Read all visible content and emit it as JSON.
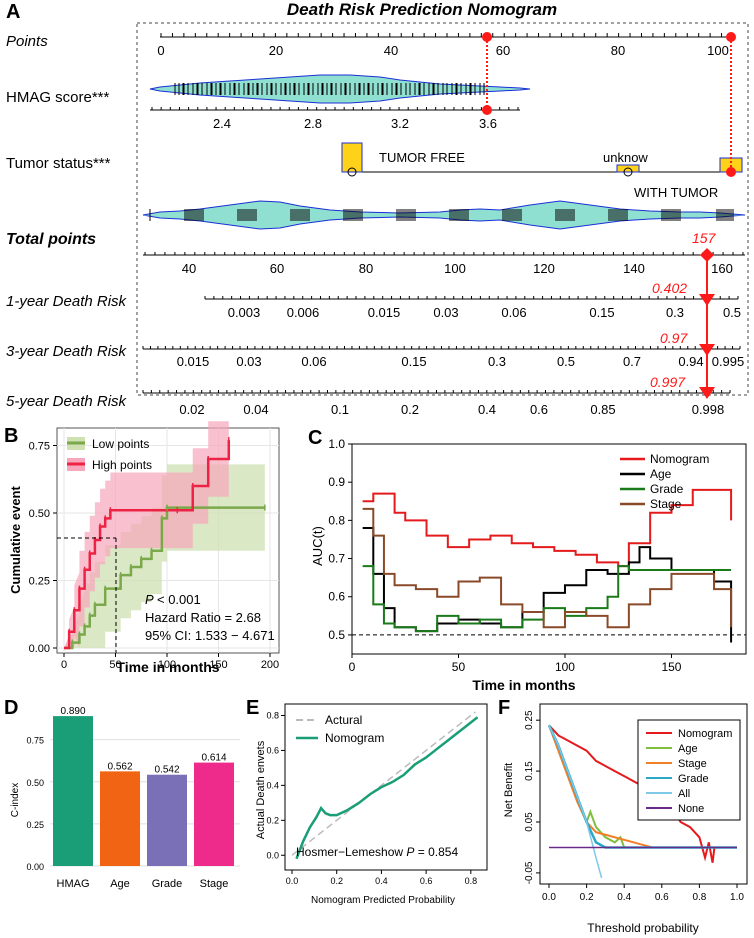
{
  "colors": {
    "accent_red": "#ff1a1a",
    "violin_fill": "#8fe0d0",
    "violin_edge": "#1a2fd6",
    "marker_yellow": "#ffd21a",
    "km_low": "#7aa84a",
    "km_low_band": "#cfe0b3",
    "km_high": "#ee2244",
    "km_high_band": "#f7a6bb",
    "bar_hmag": "#1a9e77",
    "bar_age": "#f06414",
    "bar_grade": "#7a70b8",
    "bar_stage": "#ee2a8a",
    "calib_line": "#1a9e77",
    "dca_nomogram": "#e41a1c",
    "dca_age": "#7fbf3f",
    "dca_stage": "#f07f28",
    "dca_grade": "#2ba8c8",
    "dca_all": "#7ec8e8",
    "dca_none": "#6a2a8a"
  },
  "chart_data": [
    {
      "panel": "A",
      "type": "nomogram",
      "title": "Death Risk Prediction Nomogram",
      "rows": [
        {
          "label": "Points",
          "ticks": [
            "0",
            "20",
            "40",
            "60",
            "80",
            "100"
          ],
          "range": [
            0,
            100
          ]
        },
        {
          "label": "HMAG score***",
          "ticks": [
            "2.4",
            "2.8",
            "3.2",
            "3.6"
          ],
          "range": [
            2.2,
            3.7
          ]
        },
        {
          "label": "Tumor status***",
          "levels": [
            "TUMOR FREE",
            "unknow",
            "WITH TUMOR"
          ]
        },
        {
          "label": "Total points",
          "ticks": [
            "40",
            "60",
            "80",
            "100",
            "120",
            "140",
            "160"
          ],
          "range": [
            30,
            165
          ]
        },
        {
          "label": "1-year Death Risk",
          "ticks": [
            "0.003",
            "0.006",
            "0.015",
            "0.03",
            "0.06",
            "0.15",
            "0.3",
            "0.5"
          ]
        },
        {
          "label": "3-year Death Risk",
          "ticks": [
            "0.015",
            "0.03",
            "0.06",
            "0.15",
            "0.3",
            "0.5",
            "0.7",
            "0.94",
            "0.995"
          ]
        },
        {
          "label": "5-year Death Risk",
          "ticks": [
            "0.02",
            "0.04",
            "0.1",
            "0.2",
            "0.4",
            "0.6",
            "0.85",
            "0.998"
          ]
        }
      ],
      "example": {
        "total_points": "157",
        "risk_1y": "0.402",
        "risk_3y": "0.97",
        "risk_5y": "0.997",
        "hmag_points": 56,
        "tumor_points": 101
      }
    },
    {
      "panel": "B",
      "type": "line",
      "subtype": "kaplan-meier-cumulative-event",
      "xlabel": "Time in months",
      "ylabel": "Cumulative event",
      "xlim": [
        0,
        200
      ],
      "ylim": [
        0,
        0.8
      ],
      "xticks": [
        "0",
        "50",
        "100",
        "150",
        "200"
      ],
      "yticks": [
        "0.00",
        "0.25",
        "0.50",
        "0.75"
      ],
      "series": [
        {
          "name": "Low points",
          "x": [
            0,
            8,
            15,
            20,
            25,
            30,
            40,
            55,
            65,
            75,
            85,
            95,
            100,
            195
          ],
          "y": [
            0,
            0.02,
            0.05,
            0.08,
            0.12,
            0.16,
            0.22,
            0.27,
            0.3,
            0.33,
            0.36,
            0.48,
            0.52,
            0.52
          ]
        },
        {
          "name": "High points",
          "x": [
            0,
            5,
            10,
            15,
            20,
            25,
            30,
            35,
            40,
            45,
            110,
            125,
            140,
            160
          ],
          "y": [
            0,
            0.06,
            0.14,
            0.22,
            0.29,
            0.35,
            0.4,
            0.45,
            0.48,
            0.51,
            0.51,
            0.6,
            0.7,
            0.77
          ]
        }
      ],
      "reference_lines": {
        "y": 0.5,
        "x": 48
      },
      "annotations": {
        "p_prefix": "P",
        "p_value": "< 0.001",
        "hr": "Hazard Ratio = 2.68",
        "ci": "95% CI: 1.533 − 4.671"
      }
    },
    {
      "panel": "C",
      "type": "line",
      "subtype": "time-dependent-auc",
      "xlabel": "Time in months",
      "ylabel": "AUC(t)",
      "xlim": [
        0,
        185
      ],
      "ylim": [
        0.45,
        1.0
      ],
      "xticks": [
        "0",
        "50",
        "100",
        "150"
      ],
      "yticks": [
        "0.5",
        "0.6",
        "0.7",
        "0.8",
        "0.9",
        "1.0"
      ],
      "reference_line_y": 0.5,
      "series": [
        {
          "name": "Nomogram",
          "x": [
            5,
            10,
            20,
            25,
            35,
            45,
            55,
            65,
            75,
            85,
            95,
            105,
            115,
            125,
            130,
            140,
            150,
            160,
            170,
            178
          ],
          "y": [
            0.85,
            0.87,
            0.82,
            0.8,
            0.76,
            0.73,
            0.75,
            0.76,
            0.74,
            0.73,
            0.72,
            0.71,
            0.69,
            0.68,
            0.74,
            0.82,
            0.84,
            0.88,
            0.88,
            0.8
          ]
        },
        {
          "name": "Age",
          "x": [
            5,
            10,
            15,
            20,
            30,
            40,
            50,
            60,
            70,
            80,
            90,
            100,
            110,
            120,
            130,
            135,
            140,
            150,
            160,
            170,
            178
          ],
          "y": [
            0.78,
            0.66,
            0.57,
            0.52,
            0.51,
            0.53,
            0.54,
            0.53,
            0.52,
            0.56,
            0.61,
            0.63,
            0.67,
            0.66,
            0.69,
            0.73,
            0.7,
            0.67,
            0.67,
            0.64,
            0.48
          ]
        },
        {
          "name": "Grade",
          "x": [
            5,
            10,
            15,
            20,
            30,
            40,
            50,
            60,
            70,
            80,
            90,
            100,
            110,
            120,
            125,
            130,
            140,
            150,
            160,
            170,
            178
          ],
          "y": [
            0.68,
            0.58,
            0.53,
            0.52,
            0.51,
            0.55,
            0.53,
            0.54,
            0.52,
            0.54,
            0.57,
            0.55,
            0.57,
            0.6,
            0.68,
            0.67,
            0.67,
            0.67,
            0.67,
            0.67,
            0.67
          ]
        },
        {
          "name": "Stage",
          "x": [
            5,
            10,
            15,
            20,
            30,
            40,
            50,
            60,
            70,
            80,
            90,
            100,
            110,
            120,
            130,
            140,
            150,
            160,
            170,
            178
          ],
          "y": [
            0.83,
            0.76,
            0.66,
            0.63,
            0.62,
            0.6,
            0.64,
            0.65,
            0.58,
            0.56,
            0.52,
            0.56,
            0.55,
            0.52,
            0.58,
            0.62,
            0.66,
            0.66,
            0.62,
            0.52
          ]
        }
      ]
    },
    {
      "panel": "D",
      "type": "bar",
      "ylabel": "C-index",
      "ylim": [
        0,
        0.95
      ],
      "yticks": [
        "0.00",
        "0.25",
        "0.50",
        "0.75"
      ],
      "categories": [
        "HMAG",
        "Age",
        "Grade",
        "Stage"
      ],
      "values": [
        0.89,
        0.562,
        0.542,
        0.614
      ],
      "labels": [
        "0.890",
        "0.562",
        "0.542",
        "0.614"
      ]
    },
    {
      "panel": "E",
      "type": "line",
      "subtype": "calibration",
      "xlabel": "Nomogram Predicted Probability",
      "ylabel": "Actual Death envets",
      "xlim": [
        0,
        0.85
      ],
      "ylim": [
        -0.05,
        0.82
      ],
      "xticks": [
        "0.0",
        "0.2",
        "0.4",
        "0.6",
        "0.8"
      ],
      "yticks": [
        "0.0",
        "0.2",
        "0.4",
        "0.6",
        "0.8"
      ],
      "series": [
        {
          "name": "Actural",
          "x": [
            0,
            0.82
          ],
          "y": [
            0,
            0.82
          ]
        },
        {
          "name": "Nomogram",
          "x": [
            0.02,
            0.05,
            0.08,
            0.11,
            0.13,
            0.15,
            0.17,
            0.2,
            0.25,
            0.3,
            0.35,
            0.4,
            0.45,
            0.5,
            0.55,
            0.6,
            0.65,
            0.7,
            0.75,
            0.8,
            0.83
          ],
          "y": [
            -0.02,
            0.08,
            0.16,
            0.22,
            0.27,
            0.24,
            0.23,
            0.23,
            0.26,
            0.3,
            0.35,
            0.39,
            0.42,
            0.46,
            0.52,
            0.56,
            0.61,
            0.66,
            0.71,
            0.76,
            0.79
          ]
        }
      ],
      "annotation": {
        "prefix": "Hosmer−Lemeshow ",
        "p": "P",
        "value": " =  0.854"
      }
    },
    {
      "panel": "F",
      "type": "line",
      "subtype": "decision-curve",
      "xlabel": "Threshold probability",
      "ylabel": "Net Benefit",
      "xlim": [
        0,
        1
      ],
      "ylim": [
        -0.06,
        0.27
      ],
      "xticks": [
        "0.0",
        "0.2",
        "0.4",
        "0.6",
        "0.8",
        "1.0"
      ],
      "yticks": [
        "-0.05",
        "0.05",
        "0.15",
        "0.25"
      ],
      "series": [
        {
          "name": "Nomogram",
          "x": [
            0,
            0.05,
            0.1,
            0.15,
            0.2,
            0.25,
            0.3,
            0.35,
            0.4,
            0.45,
            0.5,
            0.55,
            0.6,
            0.65,
            0.7,
            0.75,
            0.8,
            0.83,
            0.85,
            0.87,
            0.88,
            1.0
          ],
          "y": [
            0.24,
            0.22,
            0.21,
            0.2,
            0.19,
            0.17,
            0.16,
            0.15,
            0.14,
            0.13,
            0.12,
            0.11,
            0.1,
            0.08,
            0.05,
            0.04,
            0.02,
            -0.02,
            0.01,
            -0.03,
            0.0,
            0.0
          ]
        },
        {
          "name": "Age",
          "x": [
            0,
            0.05,
            0.1,
            0.15,
            0.2,
            0.22,
            0.25,
            0.3,
            0.35,
            0.38,
            0.4,
            1.0
          ],
          "y": [
            0.24,
            0.2,
            0.15,
            0.1,
            0.05,
            0.07,
            0.04,
            0.02,
            0.01,
            0.02,
            0.0,
            0.0
          ]
        },
        {
          "name": "Stage",
          "x": [
            0,
            0.05,
            0.1,
            0.15,
            0.2,
            0.25,
            0.3,
            0.4,
            0.5,
            0.55,
            1.0
          ],
          "y": [
            0.24,
            0.19,
            0.14,
            0.09,
            0.05,
            0.03,
            0.025,
            0.015,
            0.005,
            0.0,
            0.0
          ]
        },
        {
          "name": "Grade",
          "x": [
            0,
            0.05,
            0.1,
            0.15,
            0.2,
            0.25,
            0.3,
            1.0
          ],
          "y": [
            0.24,
            0.2,
            0.15,
            0.1,
            0.05,
            0.01,
            0.0,
            0.0
          ]
        },
        {
          "name": "All",
          "x": [
            0,
            0.05,
            0.1,
            0.15,
            0.2,
            0.25,
            0.28
          ],
          "y": [
            0.24,
            0.2,
            0.15,
            0.1,
            0.05,
            -0.02,
            -0.06
          ]
        },
        {
          "name": "None",
          "x": [
            0,
            1.0
          ],
          "y": [
            0,
            0
          ]
        }
      ]
    }
  ]
}
